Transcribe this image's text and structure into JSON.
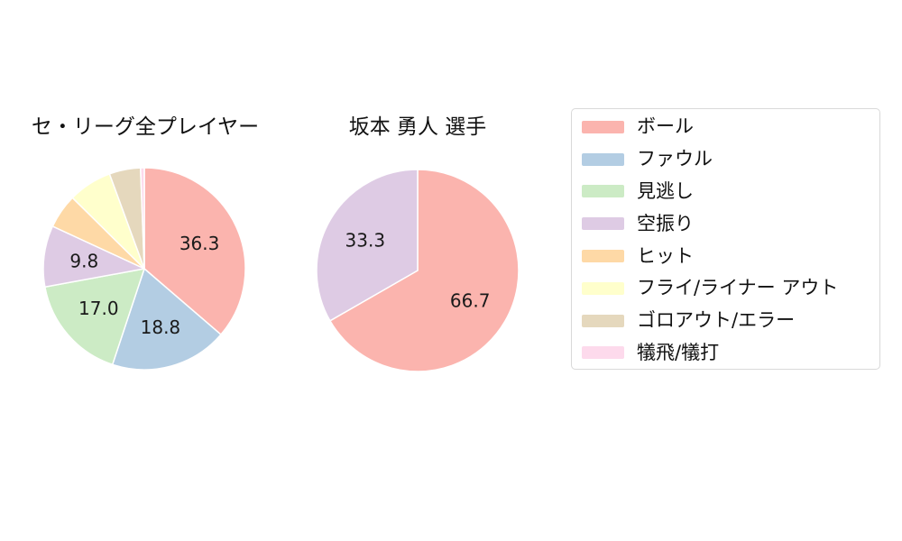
{
  "charts": {
    "league_title": "セ・リーグ全プレイヤー",
    "player_title": "坂本 勇人 選手"
  },
  "legend": {
    "items": [
      {
        "label": "ボール",
        "color": "#fbb4ae"
      },
      {
        "label": "ファウル",
        "color": "#b3cde3"
      },
      {
        "label": "見逃し",
        "color": "#ccebc5"
      },
      {
        "label": "空振り",
        "color": "#decbe4"
      },
      {
        "label": "ヒット",
        "color": "#fed9a6"
      },
      {
        "label": "フライ/ライナー アウト",
        "color": "#ffffcc"
      },
      {
        "label": "ゴロアウト/エラー",
        "color": "#e5d8bd"
      },
      {
        "label": "犠飛/犠打",
        "color": "#fddaec"
      }
    ]
  },
  "chart_data": [
    {
      "type": "pie",
      "title": "セ・リーグ全プレイヤー",
      "start_angle_deg": 0,
      "direction": "clockwise",
      "categories": [
        "ボール",
        "ファウル",
        "見逃し",
        "空振り",
        "ヒット",
        "フライ/ライナー アウト",
        "ゴロアウト/エラー",
        "犠飛/犠打"
      ],
      "values": [
        36.3,
        18.8,
        17.0,
        9.8,
        5.5,
        7.0,
        5.0,
        0.6
      ],
      "labels_shown": [
        "36.3",
        "18.8",
        "17.0",
        "9.8",
        "",
        "",
        "",
        ""
      ],
      "colors": [
        "#fbb4ae",
        "#b3cde3",
        "#ccebc5",
        "#decbe4",
        "#fed9a6",
        "#ffffcc",
        "#e5d8bd",
        "#fddaec"
      ],
      "legend_position": "right"
    },
    {
      "type": "pie",
      "title": "坂本 勇人 選手",
      "start_angle_deg": 0,
      "direction": "clockwise",
      "categories": [
        "ボール",
        "空振り"
      ],
      "values": [
        66.7,
        33.3
      ],
      "labels_shown": [
        "66.7",
        "33.3"
      ],
      "colors": [
        "#fbb4ae",
        "#decbe4"
      ],
      "legend_position": "right"
    }
  ]
}
